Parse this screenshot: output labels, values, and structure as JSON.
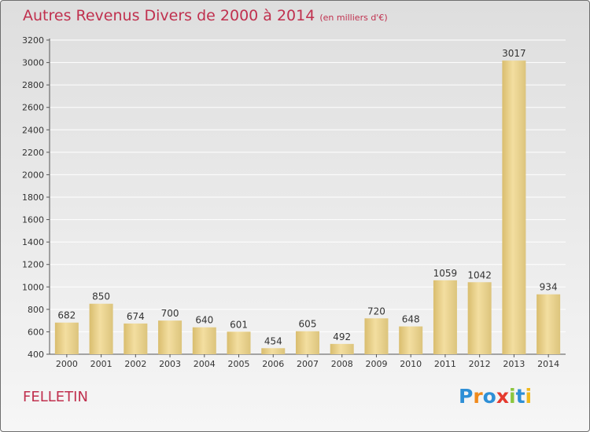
{
  "chart_data": {
    "type": "bar",
    "title": "Autres Revenus Divers de 2000 à 2014",
    "subtitle": "(en milliers d'€)",
    "categories": [
      "2000",
      "2001",
      "2002",
      "2003",
      "2004",
      "2005",
      "2006",
      "2007",
      "2008",
      "2009",
      "2010",
      "2011",
      "2012",
      "2013",
      "2014"
    ],
    "values": [
      682,
      850,
      674,
      700,
      640,
      601,
      454,
      605,
      492,
      720,
      648,
      1059,
      1042,
      3017,
      934
    ],
    "ylim": [
      400,
      3200
    ],
    "yticks": [
      400,
      600,
      800,
      1000,
      1200,
      1400,
      1600,
      1800,
      2000,
      2200,
      2400,
      2600,
      2800,
      3000,
      3200
    ],
    "grid": true,
    "legend": "none",
    "bar_color": "#e6cf86"
  },
  "location": "FELLETIN",
  "logo": {
    "letters": [
      "P",
      "r",
      "o",
      "x",
      "i",
      "t",
      "i"
    ],
    "colors": [
      "#2e8fd6",
      "#f08a1c",
      "#2e8fd6",
      "#e53a2e",
      "#8cc63f",
      "#2e8fd6",
      "#f0b81c"
    ]
  }
}
